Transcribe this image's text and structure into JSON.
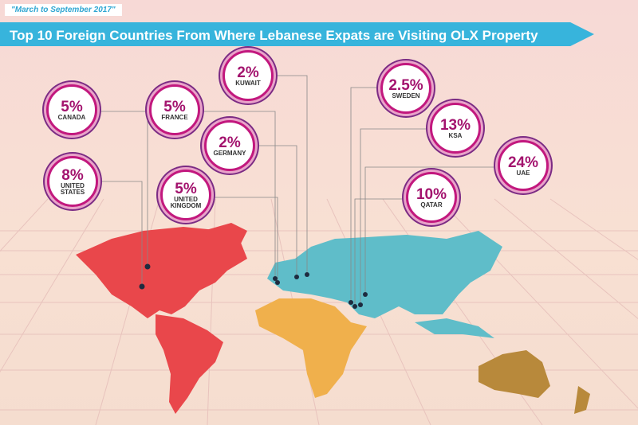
{
  "header": {
    "date": "\"March to September 2017\"",
    "title": "Top 10 Foreign Countries From Where Lebanese Expats are Visiting OLX Property"
  },
  "callouts": [
    {
      "percent": "5%",
      "country": "CANADA"
    },
    {
      "percent": "5%",
      "country": "FRANCE"
    },
    {
      "percent": "2%",
      "country": "KUWAIT"
    },
    {
      "percent": "2.5%",
      "country": "SWEDEN"
    },
    {
      "percent": "2%",
      "country": "GERMANY"
    },
    {
      "percent": "13%",
      "country": "KSA"
    },
    {
      "percent": "24%",
      "country": "UAE"
    },
    {
      "percent": "8%",
      "country": "UNITED STATES"
    },
    {
      "percent": "5%",
      "country": "UNITED KINGDOM"
    },
    {
      "percent": "10%",
      "country": "QATAR"
    }
  ]
}
